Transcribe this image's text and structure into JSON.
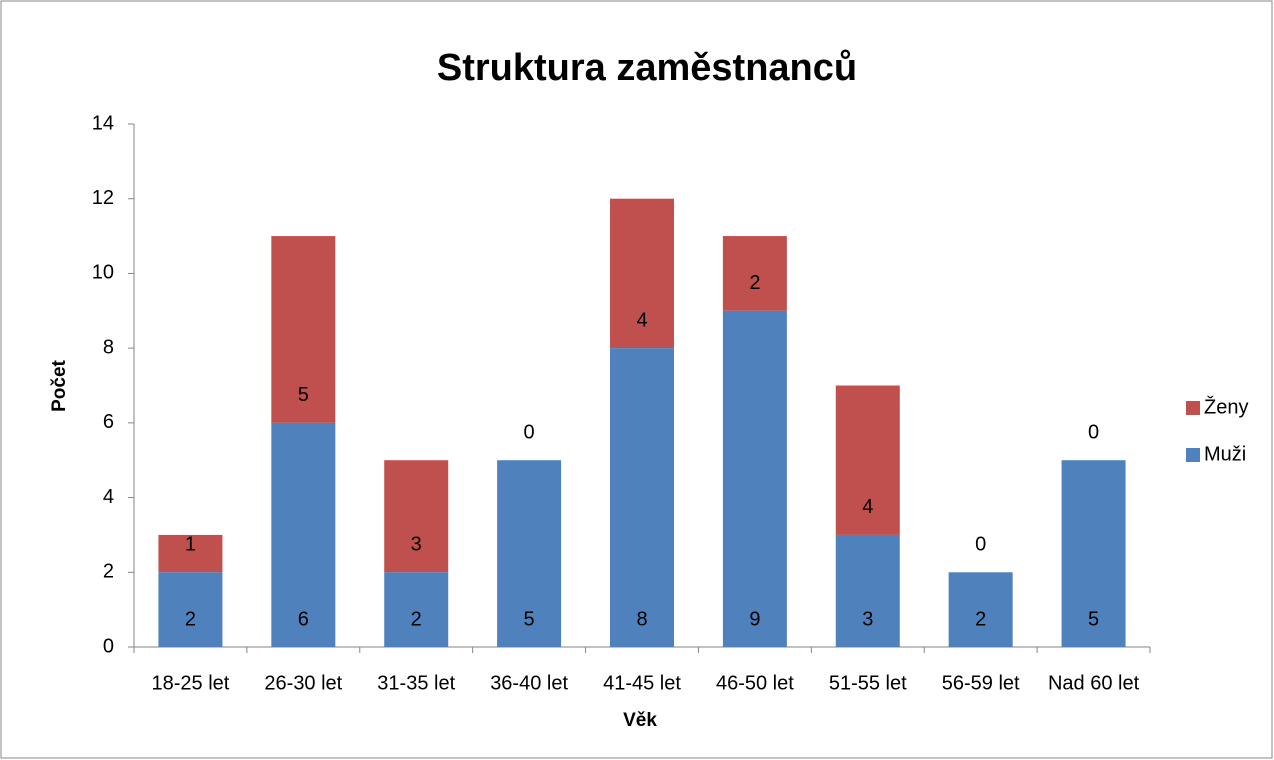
{
  "chart_data": {
    "type": "stacked_bar",
    "title": "Struktura zaměstnanců",
    "x_label": "Věk",
    "y_label": "Počet",
    "categories": [
      "18-25 let",
      "26-30 let",
      "31-35 let",
      "36-40 let",
      "41-45 let",
      "46-50 let",
      "51-55 let",
      "56-59 let",
      "Nad 60 let"
    ],
    "series": [
      {
        "name": "Muži",
        "color": "#4f81bd",
        "values": [
          2,
          6,
          2,
          5,
          8,
          9,
          3,
          2,
          5
        ]
      },
      {
        "name": "Ženy",
        "color": "#c0504d",
        "values": [
          1,
          5,
          3,
          0,
          4,
          2,
          4,
          0,
          0
        ]
      }
    ],
    "ylim": [
      0,
      14
    ],
    "yticks": [
      0,
      2,
      4,
      6,
      8,
      10,
      12,
      14
    ],
    "grid": false,
    "legend": "right"
  }
}
